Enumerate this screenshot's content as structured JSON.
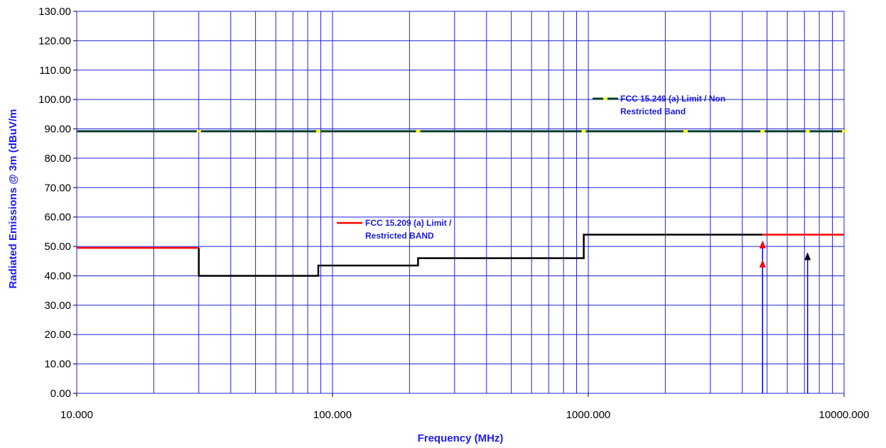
{
  "chart_data": {
    "type": "line",
    "xlabel": "Frequency (MHz)",
    "ylabel": "Radiated Emissions @ 3m (dBuV/m",
    "x_scale": "log",
    "xlim": [
      10,
      10000
    ],
    "ylim": [
      0,
      130
    ],
    "x_ticks": [
      "10.000",
      "100.000",
      "1000.000",
      "10000.000"
    ],
    "y_ticks": [
      "0.00",
      "10.00",
      "20.00",
      "30.00",
      "40.00",
      "50.00",
      "60.00",
      "70.00",
      "80.00",
      "90.00",
      "100.00",
      "110.00",
      "120.00",
      "130.00"
    ],
    "grid": true,
    "series": [
      {
        "name": "FCC 15.249 (a) Limit / Non Restricted Band",
        "name_line1": "FCC 15.249 (a) Limit / Non",
        "name_line2": "Restricted Band",
        "color": "#0b3d2e",
        "marker_color": "#ffff00",
        "x": [
          10,
          10000
        ],
        "y": [
          89.2,
          89.2
        ],
        "marker_x": [
          30,
          88,
          216,
          960,
          2400,
          4800,
          7200,
          10000
        ]
      },
      {
        "name": "FCC 15.209 (a) Limit / Restricted BAND",
        "name_line1": "FCC 15.209 (a) Limit /",
        "name_line2": "Restricted BAND",
        "color": "#ff0000",
        "segments": [
          {
            "x": [
              10,
              30
            ],
            "y": [
              49.5,
              49.5
            ]
          },
          {
            "x": [
              4800,
              10000
            ],
            "y": [
              54,
              54
            ]
          }
        ]
      },
      {
        "name": "",
        "color": "#000000",
        "x": [
          30,
          30,
          88,
          88,
          216,
          216,
          960,
          960,
          4800
        ],
        "y": [
          49.5,
          40,
          40,
          43.5,
          43.5,
          46,
          46,
          54,
          54
        ]
      }
    ],
    "markers": [
      {
        "x": 4800,
        "y_base": 0,
        "y_tip": 52,
        "color": "#ff0000",
        "line_color": "#0000ff"
      },
      {
        "x": 4800,
        "y_tip": 45.5,
        "color": "#ff0000"
      },
      {
        "x": 7200,
        "y_base": 0,
        "y_tip": 48,
        "color": "#000000",
        "line_color": "#0000ff"
      }
    ]
  }
}
